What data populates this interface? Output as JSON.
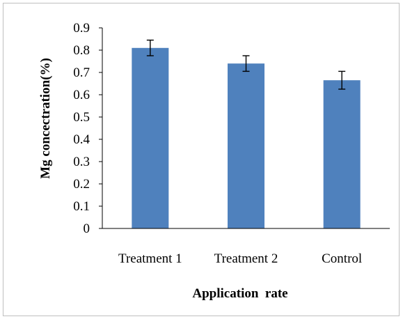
{
  "chart_data": {
    "type": "bar",
    "categories": [
      "Treatment 1",
      "Treatment 2",
      "Control"
    ],
    "values": [
      0.81,
      0.74,
      0.665
    ],
    "error": [
      0.035,
      0.035,
      0.04
    ],
    "ylabel": "Mg concectration(%)",
    "xlabel": "Application  rate",
    "ylim": [
      0,
      0.9
    ],
    "yticks": [
      "0",
      "0.1",
      "0.2",
      "0.3",
      "0.4",
      "0.5",
      "0.6",
      "0.7",
      "0.8",
      "0.9"
    ],
    "grid": false,
    "bar_color": "#4f81bd"
  }
}
